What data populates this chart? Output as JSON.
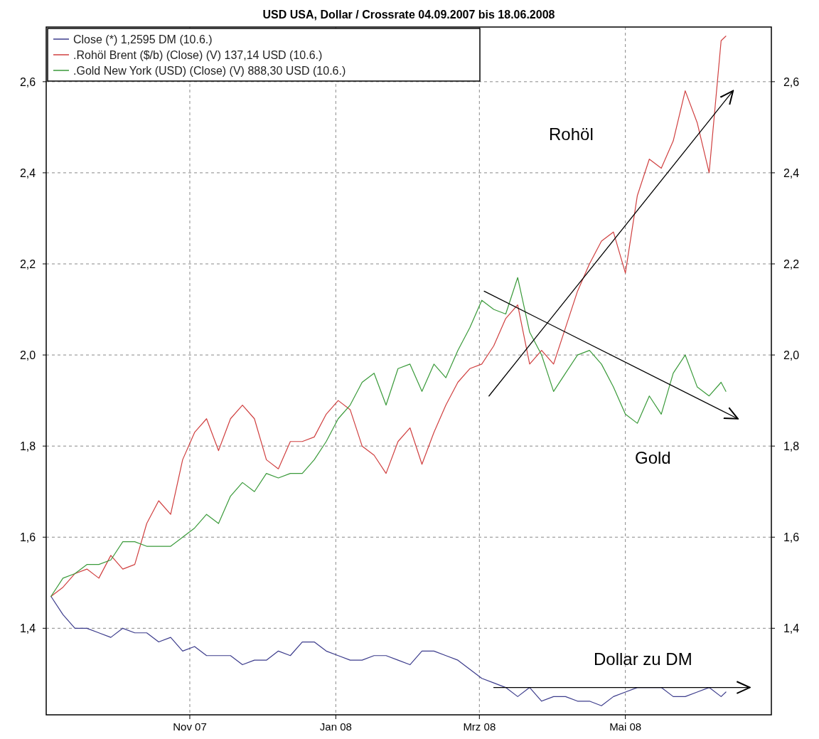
{
  "chart_data": {
    "type": "line",
    "title": "USD USA, Dollar / Crossrate 04.09.2007 bis 18.06.2008",
    "x": [
      "2007-09-04",
      "2007-09-09",
      "2007-09-14",
      "2007-09-19",
      "2007-09-24",
      "2007-09-29",
      "2007-10-04",
      "2007-10-09",
      "2007-10-14",
      "2007-10-19",
      "2007-10-24",
      "2007-10-29",
      "2007-11-03",
      "2007-11-08",
      "2007-11-13",
      "2007-11-18",
      "2007-11-23",
      "2007-11-28",
      "2007-12-03",
      "2007-12-08",
      "2007-12-13",
      "2007-12-18",
      "2007-12-23",
      "2007-12-28",
      "2008-01-02",
      "2008-01-07",
      "2008-01-12",
      "2008-01-17",
      "2008-01-22",
      "2008-01-27",
      "2008-02-01",
      "2008-02-06",
      "2008-02-11",
      "2008-02-16",
      "2008-02-21",
      "2008-02-26",
      "2008-03-02",
      "2008-03-07",
      "2008-03-12",
      "2008-03-17",
      "2008-03-22",
      "2008-03-27",
      "2008-04-01",
      "2008-04-06",
      "2008-04-11",
      "2008-04-16",
      "2008-04-21",
      "2008-04-26",
      "2008-05-01",
      "2008-05-06",
      "2008-05-11",
      "2008-05-16",
      "2008-05-21",
      "2008-05-26",
      "2008-05-31",
      "2008-06-05",
      "2008-06-10",
      "2008-06-12"
    ],
    "series": [
      {
        "name": "Close (*) 1,2595 DM (10.6.)",
        "color": "#3c3c8c",
        "values": [
          1.47,
          1.43,
          1.4,
          1.4,
          1.39,
          1.38,
          1.4,
          1.39,
          1.39,
          1.37,
          1.38,
          1.35,
          1.36,
          1.34,
          1.34,
          1.34,
          1.32,
          1.33,
          1.33,
          1.35,
          1.34,
          1.37,
          1.37,
          1.35,
          1.34,
          1.33,
          1.33,
          1.34,
          1.34,
          1.33,
          1.32,
          1.35,
          1.35,
          1.34,
          1.33,
          1.31,
          1.29,
          1.28,
          1.27,
          1.25,
          1.27,
          1.24,
          1.25,
          1.25,
          1.24,
          1.24,
          1.23,
          1.25,
          1.26,
          1.27,
          1.27,
          1.27,
          1.25,
          1.25,
          1.26,
          1.27,
          1.25,
          1.26
        ]
      },
      {
        "name": ".Rohöl Brent ($/b) (Close) (V) 137,14 USD (10.6.)",
        "color": "#d04040",
        "values": [
          1.47,
          1.49,
          1.52,
          1.53,
          1.51,
          1.56,
          1.53,
          1.54,
          1.63,
          1.68,
          1.65,
          1.77,
          1.83,
          1.86,
          1.79,
          1.86,
          1.89,
          1.86,
          1.77,
          1.75,
          1.81,
          1.81,
          1.82,
          1.87,
          1.9,
          1.88,
          1.8,
          1.78,
          1.74,
          1.81,
          1.84,
          1.76,
          1.83,
          1.89,
          1.94,
          1.97,
          1.98,
          2.02,
          2.08,
          2.11,
          1.98,
          2.01,
          1.98,
          2.06,
          2.14,
          2.2,
          2.25,
          2.27,
          2.18,
          2.35,
          2.43,
          2.41,
          2.47,
          2.58,
          2.51,
          2.4,
          2.69,
          2.7
        ]
      },
      {
        "name": ".Gold New York (USD) (Close) (V) 888,30 USD (10.6.)",
        "color": "#3a9a3a",
        "values": [
          1.47,
          1.51,
          1.52,
          1.54,
          1.54,
          1.55,
          1.59,
          1.59,
          1.58,
          1.58,
          1.58,
          1.6,
          1.62,
          1.65,
          1.63,
          1.69,
          1.72,
          1.7,
          1.74,
          1.73,
          1.74,
          1.74,
          1.77,
          1.81,
          1.86,
          1.89,
          1.94,
          1.96,
          1.89,
          1.97,
          1.98,
          1.92,
          1.98,
          1.95,
          2.01,
          2.06,
          2.12,
          2.1,
          2.09,
          2.17,
          2.05,
          2.0,
          1.92,
          1.96,
          2.0,
          2.01,
          1.98,
          1.93,
          1.87,
          1.85,
          1.91,
          1.87,
          1.96,
          2.0,
          1.93,
          1.91,
          1.94,
          1.92
        ]
      },
      {
        "type": "line",
        "color": "#000000",
        "x": [
          "2008-03-05",
          "2008-06-15"
        ],
        "values": [
          1.91,
          2.58
        ]
      },
      {
        "type": "line",
        "color": "#000000",
        "x": [
          "2008-03-03",
          "2008-06-17"
        ],
        "values": [
          2.14,
          1.86
        ]
      },
      {
        "type": "line",
        "color": "#000000",
        "x": [
          "2008-03-07",
          "2008-06-22"
        ],
        "values": [
          1.27,
          1.27
        ]
      }
    ],
    "annotations": [
      "Rohöl",
      "Gold",
      "Dollar zu DM"
    ],
    "xlim": [
      "2007-09-02",
      "2008-07-01"
    ],
    "xticks": [
      {
        "value": "2007-11-01",
        "label": "Nov 07"
      },
      {
        "value": "2008-01-01",
        "label": "Jan 08"
      },
      {
        "value": "2008-03-01",
        "label": "Mrz 08"
      },
      {
        "value": "2008-05-01",
        "label": "Mai 08"
      }
    ],
    "ylim": [
      1.21,
      2.72
    ],
    "yticks": [
      {
        "value": 1.4,
        "label": "1,4"
      },
      {
        "value": 1.6,
        "label": "1,6"
      },
      {
        "value": 1.8,
        "label": "1,8"
      },
      {
        "value": 2.0,
        "label": "2,0"
      },
      {
        "value": 2.2,
        "label": "2,2"
      },
      {
        "value": 2.4,
        "label": "2,4"
      },
      {
        "value": 2.6,
        "label": "2,6"
      }
    ],
    "y2lim": [
      1.21,
      2.72
    ],
    "y2ticks": [
      {
        "value": 1.4,
        "label": "1,4"
      },
      {
        "value": 1.6,
        "label": "1,6"
      },
      {
        "value": 1.8,
        "label": "1,8"
      },
      {
        "value": 2.0,
        "label": "2,0"
      },
      {
        "value": 2.2,
        "label": "2,2"
      },
      {
        "value": 2.4,
        "label": "2,4"
      },
      {
        "value": 2.6,
        "label": "2,6"
      }
    ],
    "grid": true,
    "legend": "top left"
  }
}
